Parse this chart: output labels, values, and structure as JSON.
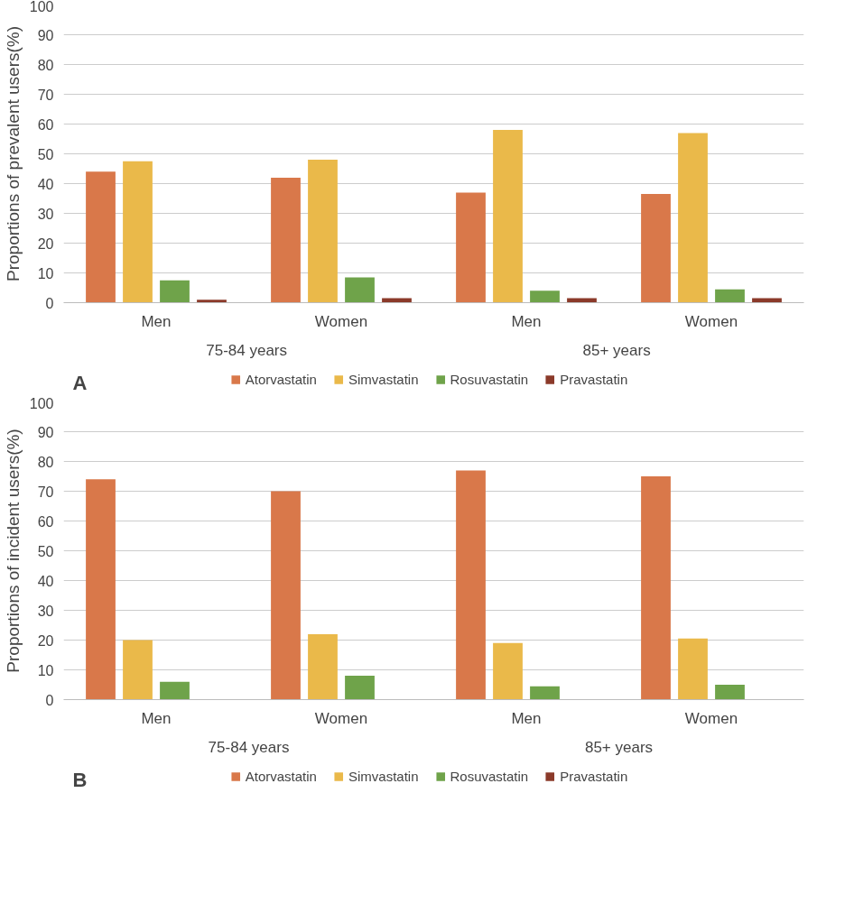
{
  "chart_data": [
    {
      "type": "bar",
      "ylabel": "Proportions of prevalent users(%)",
      "categories": [
        "Men",
        "Women",
        "Men",
        "Women"
      ],
      "series": [
        {
          "name": "Atorvastatin",
          "color": "#d9784a",
          "values": [
            44,
            42,
            37,
            36.5
          ]
        },
        {
          "name": "Simvastatin",
          "color": "#eab94a",
          "values": [
            47.5,
            48,
            58,
            57
          ]
        },
        {
          "name": "Rosuvastatin",
          "color": "#6fa34a",
          "values": [
            7.5,
            8.5,
            4,
            4.5
          ]
        },
        {
          "name": "Pravastatin",
          "color": "#8b3a2a",
          "values": [
            1,
            1.5,
            1.5,
            1.5
          ]
        }
      ],
      "annotations": [
        "75-84  years",
        "85+  years",
        "A"
      ],
      "ylim": [
        0,
        100
      ],
      "yticks": [
        0,
        10,
        20,
        30,
        40,
        50,
        60,
        70,
        80,
        90,
        100
      ],
      "grid": "y",
      "legend": "bottom"
    },
    {
      "type": "bar",
      "ylabel": "Proportions of incident users(%)",
      "categories": [
        "Men",
        "Women",
        "Men",
        "Women"
      ],
      "series": [
        {
          "name": "Atorvastatin",
          "color": "#d9784a",
          "values": [
            74,
            70,
            77,
            75
          ]
        },
        {
          "name": "Simvastatin",
          "color": "#eab94a",
          "values": [
            20,
            22,
            19,
            20.5
          ]
        },
        {
          "name": "Rosuvastatin",
          "color": "#6fa34a",
          "values": [
            6,
            8,
            4.5,
            5
          ]
        },
        {
          "name": "Pravastatin",
          "color": "#8b3a2a",
          "values": [
            0,
            0,
            0,
            0
          ]
        }
      ],
      "annotations": [
        "75-84 years",
        "85+ years",
        "B"
      ],
      "ylim": [
        0,
        100
      ],
      "yticks": [
        0,
        10,
        20,
        30,
        40,
        50,
        60,
        70,
        80,
        90,
        100
      ],
      "grid": "y",
      "legend": "bottom"
    }
  ]
}
